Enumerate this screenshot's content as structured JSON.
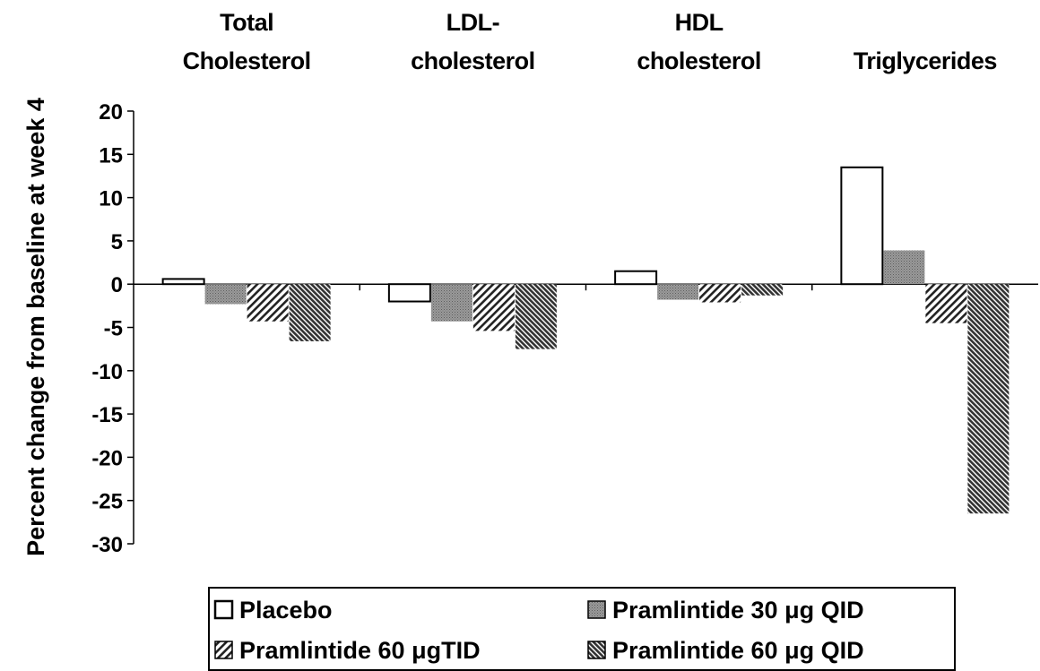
{
  "chart_data": {
    "type": "bar",
    "categories": [
      [
        "Total",
        "Cholesterol"
      ],
      [
        "LDL-",
        "cholesterol"
      ],
      [
        "HDL",
        "cholesterol"
      ],
      [
        "",
        "Triglycerides"
      ]
    ],
    "ylabel": "Percent change from baseline at week 4",
    "ylim": [
      -30,
      20
    ],
    "yticks": [
      "20",
      "15",
      "10",
      "5",
      "0",
      "-5",
      "-10",
      "-15",
      "-20",
      "-25",
      "-30"
    ],
    "grid": false,
    "legend_position": "bottom",
    "series": [
      {
        "name": "Placebo",
        "pattern": "white",
        "values": [
          0.6,
          -2.0,
          1.5,
          13.5
        ]
      },
      {
        "name": "Pramlintide 30   μg QID",
        "pattern": "gray-dotted",
        "values": [
          -2.3,
          -4.3,
          -1.8,
          3.9
        ]
      },
      {
        "name": "Pramlintide 60   μgTID",
        "pattern": "light-diagonal",
        "values": [
          -4.3,
          -5.4,
          -2.1,
          -4.5
        ]
      },
      {
        "name": "Pramlintide 60   μg QID",
        "pattern": "dark-diagonal",
        "values": [
          -6.6,
          -7.5,
          -1.3,
          -26.5
        ]
      }
    ]
  }
}
